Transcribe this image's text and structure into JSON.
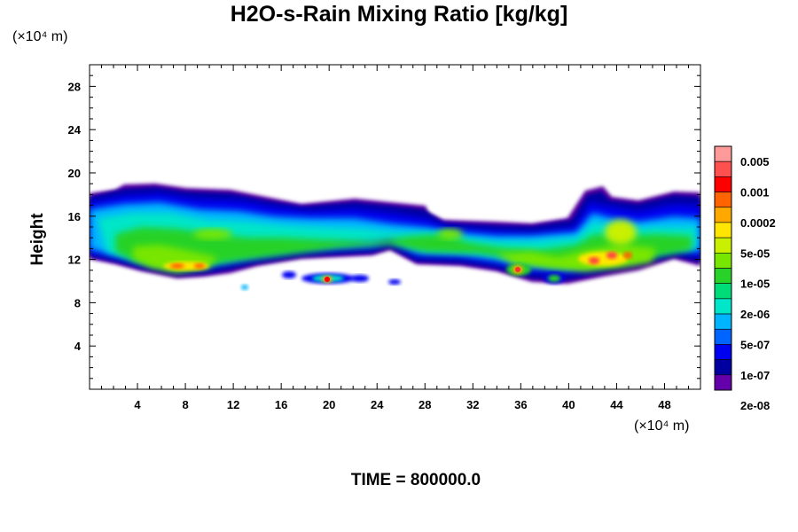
{
  "chart_data": {
    "type": "heatmap",
    "title": "H2O-s-Rain Mixing Ratio [kg/kg]",
    "xlabel": "",
    "ylabel": "Height",
    "x_unit_label": "(×10⁴ m)",
    "y_unit_label": "(×10⁴ m)",
    "annotation": "TIME = 800000.0",
    "xlim": [
      0,
      51
    ],
    "ylim": [
      0,
      30
    ],
    "x_ticks": [
      4,
      8,
      12,
      16,
      20,
      24,
      28,
      32,
      36,
      40,
      44,
      48
    ],
    "y_ticks": [
      4,
      8,
      12,
      16,
      20,
      24,
      28
    ],
    "grid": false,
    "legend": "colorbar-right",
    "colorbar": {
      "labels": [
        "0.005",
        "0.001",
        "0.0002",
        "5e-05",
        "1e-05",
        "2e-06",
        "5e-07",
        "1e-07",
        "2e-08"
      ],
      "colors": [
        "#ff9a9a",
        "#ff5050",
        "#ff0000",
        "#ff6400",
        "#ffa800",
        "#ffe600",
        "#c8f000",
        "#78e600",
        "#28d228",
        "#00dc78",
        "#00e6c8",
        "#00b4ff",
        "#0064ff",
        "#0000f0",
        "#0000a0",
        "#6400aa"
      ]
    },
    "field_regions": [
      {
        "x": [
          0,
          8
        ],
        "y": [
          12.5,
          18
        ],
        "level": "1e-07"
      },
      {
        "x": [
          2,
          10
        ],
        "y": [
          11,
          14.5
        ],
        "level": "1e-05"
      },
      {
        "x": [
          4,
          11
        ],
        "y": [
          10.5,
          12
        ],
        "level": "0.0002"
      },
      {
        "x": [
          8,
          16
        ],
        "y": [
          12,
          19
        ],
        "level": "1e-07"
      },
      {
        "x": [
          16,
          28
        ],
        "y": [
          13,
          17.5
        ],
        "level": "1e-07"
      },
      {
        "x": [
          18,
          23
        ],
        "y": [
          9.5,
          11
        ],
        "level": "2e-06"
      },
      {
        "x": [
          19.5,
          20.3
        ],
        "y": [
          9.8,
          10.5
        ],
        "level": "0.005"
      },
      {
        "x": [
          28,
          40
        ],
        "y": [
          11,
          16
        ],
        "level": "1e-07"
      },
      {
        "x": [
          30,
          38
        ],
        "y": [
          11,
          14
        ],
        "level": "1e-05"
      },
      {
        "x": [
          35,
          36
        ],
        "y": [
          10,
          11
        ],
        "level": "0.001"
      },
      {
        "x": [
          40,
          51
        ],
        "y": [
          11,
          18
        ],
        "level": "1e-07"
      },
      {
        "x": [
          41,
          48
        ],
        "y": [
          11,
          16
        ],
        "level": "1e-05"
      },
      {
        "x": [
          42,
          46
        ],
        "y": [
          11.5,
          13
        ],
        "level": "0.001"
      }
    ]
  }
}
